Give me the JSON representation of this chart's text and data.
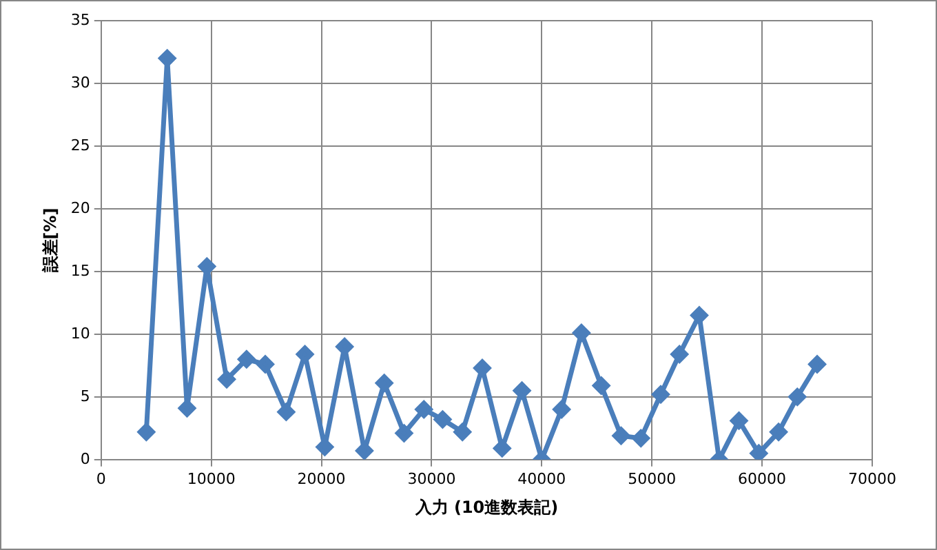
{
  "chart_data": {
    "type": "line",
    "xlabel": "入力 (10進数表記)",
    "ylabel": "誤差[%]",
    "x": [
      4100,
      6000,
      7800,
      9600,
      11400,
      13200,
      14900,
      16800,
      18500,
      20300,
      22100,
      23900,
      25700,
      27500,
      29300,
      31000,
      32800,
      34600,
      36400,
      38200,
      40000,
      41800,
      43600,
      45400,
      47200,
      49000,
      50800,
      52500,
      54300,
      56100,
      57900,
      59700,
      61500,
      63200,
      65000
    ],
    "series": [
      {
        "color": "#4a7ebb",
        "values": [
          2.2,
          32,
          4.1,
          15.4,
          6.4,
          8,
          7.6,
          3.8,
          8.4,
          1,
          9,
          0.7,
          6.1,
          2.1,
          4,
          3.2,
          2.2,
          7.3,
          0.9,
          5.5,
          0,
          4,
          10.1,
          5.9,
          1.9,
          1.7,
          5.2,
          8.4,
          11.5,
          0,
          3.1,
          0.5,
          2.2,
          5,
          7.6
        ]
      }
    ],
    "xlim": [
      0,
      70000
    ],
    "xticks": [
      0,
      10000,
      20000,
      30000,
      40000,
      50000,
      60000,
      70000
    ],
    "ylim": [
      0,
      35
    ],
    "yticks": [
      0,
      5,
      10,
      15,
      20,
      25,
      30,
      35
    ],
    "grid": true,
    "legend": false,
    "marker": "diamond",
    "line_style": "solid"
  }
}
